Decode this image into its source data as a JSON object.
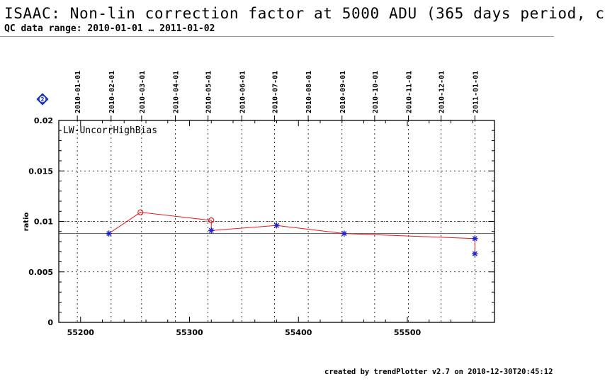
{
  "header": {
    "title": "ISAAC: Non-lin correction factor at 5000 ADU (365 days period, c",
    "subtitle": "QC data range: 2010-01-01 … 2011-01-02"
  },
  "footer": {
    "text": "created by trendPlotter v2.7 on 2010-12-30T20:45:12"
  },
  "badge": {
    "label": "2",
    "icon": "diamond-icon",
    "color": "#1f3fd1"
  },
  "colors": {
    "series": "#e41a1c",
    "marker_star": "#2323c8",
    "reference": "#555555"
  },
  "chart_data": {
    "type": "line",
    "annotation": "LW-UncorrHighBias",
    "ylabel": "ratio",
    "xlim": [
      55180,
      55580
    ],
    "ylim": [
      0,
      0.02
    ],
    "x_ticks": [
      "55200",
      "55300",
      "55400",
      "55500"
    ],
    "y_ticks": [
      "0",
      "0.005",
      "0.01",
      "0.015",
      "0.02"
    ],
    "top_date_ticks": [
      "2010-01-01",
      "2010-02-01",
      "2010-03-01",
      "2010-04-01",
      "2010-05-01",
      "2010-06-01",
      "2010-07-01",
      "2010-08-01",
      "2010-09-01",
      "2010-10-01",
      "2010-11-01",
      "2010-12-01",
      "2011-01-01"
    ],
    "top_date_mjd": [
      55197,
      55228,
      55256,
      55287,
      55317,
      55348,
      55378,
      55409,
      55440,
      55470,
      55501,
      55531,
      55562
    ],
    "reference_line": 0.0088,
    "upper_dotted_line": 0.01,
    "grid": "dotted",
    "series": [
      {
        "x": [
          55226,
          55255,
          55320,
          55320,
          55380,
          55442,
          55562,
          55562
        ],
        "y": [
          0.0088,
          0.0109,
          0.0101,
          0.0091,
          0.0096,
          0.0088,
          0.0083,
          0.0068
        ],
        "markers": [
          "star",
          "circle",
          "circle",
          "star",
          "star",
          "star",
          "star",
          "star"
        ]
      }
    ]
  }
}
